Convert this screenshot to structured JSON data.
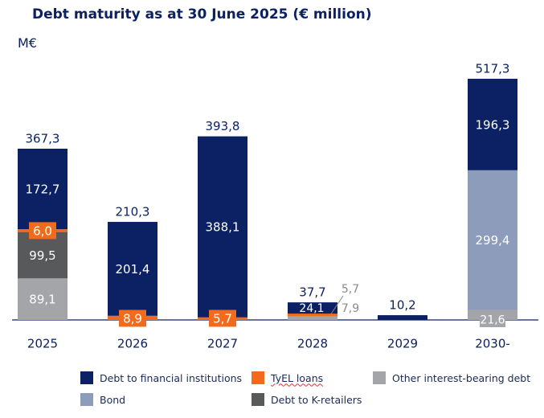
{
  "chart_data": {
    "type": "bar",
    "stacked": true,
    "title": "Debt maturity as at 30 June 2025 (€ million)",
    "ylabel": "M€",
    "categories": [
      "2025",
      "2026",
      "2027",
      "2028",
      "2029",
      "2030-"
    ],
    "totals": [
      "367,3",
      "210,3",
      "393,8",
      "37,7",
      "10,2",
      "517,3"
    ],
    "ylim": [
      0,
      540
    ],
    "series": [
      {
        "key": "other",
        "name": "Other interest-bearing debt",
        "color": "#a3a5a8",
        "values": [
          89.1,
          0,
          0,
          7.9,
          0,
          21.6
        ],
        "labels": [
          "89,1",
          "",
          "",
          "7,9",
          "",
          "21,6"
        ]
      },
      {
        "key": "bond",
        "name": "Bond",
        "color": "#8e9cbc",
        "values": [
          0,
          0,
          0,
          0,
          0,
          299.4
        ],
        "labels": [
          "",
          "",
          "",
          "",
          "",
          "299,4"
        ]
      },
      {
        "key": "kret",
        "name": "Debt to K-retailers",
        "color": "#58595b",
        "values": [
          99.5,
          0,
          0,
          0,
          0,
          0
        ],
        "labels": [
          "99,5",
          "",
          "",
          "",
          "",
          ""
        ]
      },
      {
        "key": "tyel",
        "name": "TyEL loans",
        "color": "#f26b1d",
        "values": [
          6.0,
          8.9,
          5.7,
          5.7,
          0,
          0
        ],
        "labels": [
          "6,0",
          "8,9",
          "5,7",
          "5,7",
          "",
          ""
        ]
      },
      {
        "key": "fin",
        "name": "Debt to financial institutions",
        "color": "#0b2163",
        "values": [
          172.7,
          201.4,
          388.1,
          24.1,
          10.2,
          196.3
        ],
        "labels": [
          "172,7",
          "201,4",
          "388,1",
          "24,1",
          "",
          "196,3"
        ]
      }
    ]
  },
  "legend": {
    "fin": "Debt to financial institutions",
    "tyel": "TyEL loans",
    "other": "Other interest-bearing debt",
    "bond": "Bond",
    "kret": "Debt to K-retailers"
  },
  "colors": {
    "fin": "#0b2163",
    "tyel": "#f26b1d",
    "other": "#a3a5a8",
    "bond": "#8e9cbc",
    "kret": "#58595b"
  }
}
